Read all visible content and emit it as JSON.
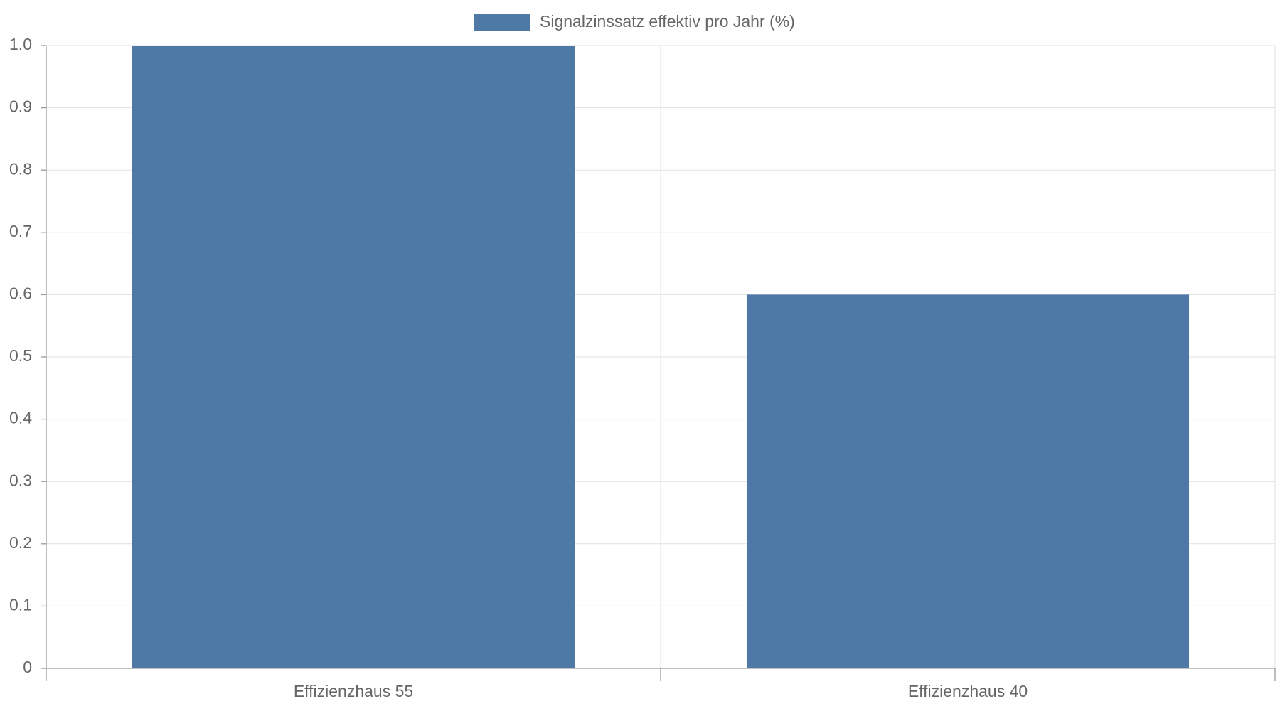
{
  "chart_data": {
    "type": "bar",
    "categories": [
      "Effizienzhaus 55",
      "Effizienzhaus 40"
    ],
    "series": [
      {
        "name": "Signalzinssatz effektiv pro Jahr (%)",
        "color": "#4e79a7",
        "values": [
          1,
          0.6
        ]
      }
    ],
    "ylim": [
      0,
      1
    ],
    "yticks": [
      0,
      0.1,
      0.2,
      0.3,
      0.4,
      0.5,
      0.6,
      0.7,
      0.8,
      0.9,
      {
        "value": 1,
        "label": "1.0"
      }
    ],
    "grid": true
  }
}
